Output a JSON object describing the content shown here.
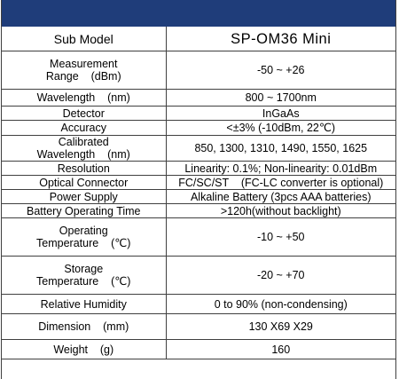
{
  "header": {
    "col1": "Sub Model",
    "col2": "SP-OM36 Mini"
  },
  "rows": [
    {
      "label_l1": "Measurement",
      "label_l2": "Range    (dBm)",
      "value": "-50 ~ +26"
    },
    {
      "label": "Wavelength    (nm)",
      "value": "800 ~ 1700nm"
    },
    {
      "label": "Detector",
      "value": "InGaAs"
    },
    {
      "label": "Accuracy",
      "value": "<±3% (-10dBm, 22℃)"
    },
    {
      "label_l1": "Calibrated",
      "label_l2": "Wavelength    (nm)",
      "value": "850, 1300, 1310, 1490, 1550, 1625"
    },
    {
      "label": "Resolution",
      "value": "Linearity: 0.1%; Non-linearity: 0.01dBm"
    },
    {
      "label": "Optical Connector",
      "value": "FC/SC/ST    (FC-LC converter is optional)"
    },
    {
      "label": "Power Supply",
      "value": "Alkaline Battery (3pcs AAA batteries)"
    },
    {
      "label": "Battery Operating Time",
      "value": ">120h(without backlight)"
    },
    {
      "label_l1": "Operating",
      "label_l2": "Temperature    (℃)",
      "value": "-10 ~ +50"
    },
    {
      "label_l1": "Storage",
      "label_l2": "Temperature    (℃)",
      "value": "-20 ~ +70"
    },
    {
      "label": "Relative Humidity",
      "value": "0 to 90% (non-condensing)"
    },
    {
      "label": "Dimension    (mm)",
      "value": "130 X69 X29"
    },
    {
      "label": "Weight    (g)",
      "value": "160"
    }
  ],
  "colors": {
    "header_bar": "#1f3d7a",
    "border": "#404040"
  }
}
